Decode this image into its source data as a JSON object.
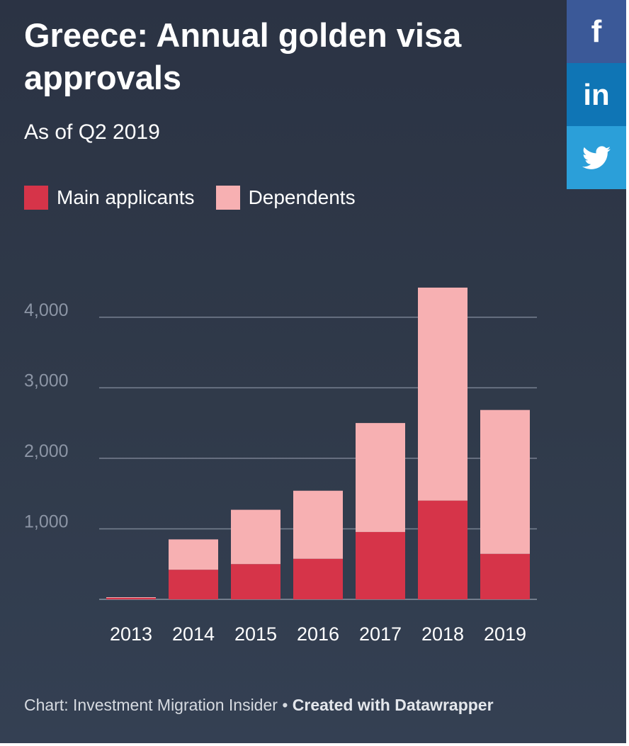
{
  "share": {
    "facebook_glyph": "f",
    "linkedin_glyph": "in",
    "twitter_icon": "twitter-bird-icon"
  },
  "footer": {
    "source": "Chart: Investment Migration Insider",
    "separator": "•",
    "created_with": "Created with",
    "tool": "Datawrapper"
  },
  "colors": {
    "background": "#2e3748",
    "main_applicants": "#d63449",
    "dependents": "#f7b0b2",
    "grid": "#8a93a3",
    "tick_label": "#8c95a5"
  },
  "chart_data": {
    "type": "bar",
    "stacked": true,
    "title": "Greece: Annual golden visa approvals",
    "subtitle": "As of Q2 2019",
    "categories": [
      "2013",
      "2014",
      "2015",
      "2016",
      "2017",
      "2018",
      "2019"
    ],
    "series": [
      {
        "name": "Main applicants",
        "color": "#d63449",
        "values": [
          20,
          420,
          500,
          575,
          955,
          1400,
          645
        ]
      },
      {
        "name": "Dependents",
        "color": "#f7b0b2",
        "values": [
          10,
          430,
          770,
          965,
          1545,
          3020,
          2040
        ]
      }
    ],
    "yticks": [
      1000,
      2000,
      3000,
      4000
    ],
    "ytick_labels": [
      "1,000",
      "2,000",
      "3,000",
      "4,000"
    ],
    "ylim": [
      0,
      4500
    ],
    "grid": true,
    "legend": "top-left"
  }
}
